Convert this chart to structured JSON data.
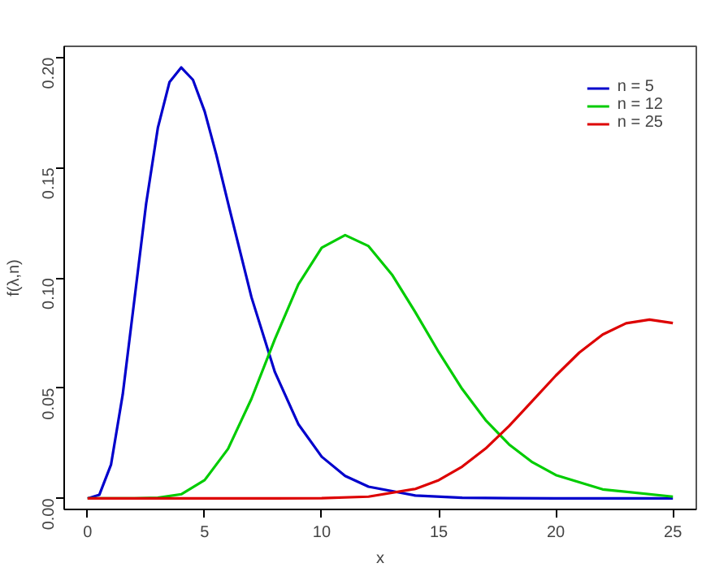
{
  "chart_data": {
    "type": "line",
    "xlabel": "x",
    "ylabel": "f(λ,n)",
    "xlim": [
      -1,
      26
    ],
    "ylim": [
      -0.005,
      0.205
    ],
    "xticks": [
      0,
      5,
      10,
      15,
      20,
      25
    ],
    "yticks": [
      {
        "value": 0,
        "label": "0.00"
      },
      {
        "value": 0.05,
        "label": "0.05"
      },
      {
        "value": 0.1,
        "label": "0.10"
      },
      {
        "value": 0.15,
        "label": "0.15"
      },
      {
        "value": 0.2,
        "label": "0.20"
      }
    ],
    "grid": false,
    "legend": "top right",
    "line_style": "solid",
    "series": [
      {
        "name": "n = 5",
        "color": "#0000cc",
        "x": [
          0,
          0.5,
          1,
          1.5,
          2,
          2.5,
          3,
          3.5,
          4,
          4.5,
          5,
          5.5,
          6,
          7,
          8,
          9,
          10,
          11,
          12,
          14,
          16,
          18,
          20,
          25
        ],
        "values": [
          0,
          0.0016,
          0.0153,
          0.0471,
          0.0902,
          0.1336,
          0.168,
          0.1888,
          0.1954,
          0.1898,
          0.1755,
          0.1558,
          0.1339,
          0.0912,
          0.0573,
          0.0337,
          0.0189,
          0.0102,
          0.0053,
          0.0013,
          0.0003,
          0.0001,
          0,
          0
        ]
      },
      {
        "name": "n = 12",
        "color": "#00cc00",
        "x": [
          0,
          2,
          3,
          4,
          5,
          6,
          7,
          8,
          9,
          10,
          11,
          12,
          13,
          14,
          15,
          16,
          17,
          18,
          19,
          20,
          22,
          25
        ],
        "values": [
          0,
          0,
          0.0003,
          0.0019,
          0.0083,
          0.0225,
          0.0452,
          0.0722,
          0.097,
          0.1137,
          0.1194,
          0.1144,
          0.1015,
          0.0844,
          0.0663,
          0.0496,
          0.0355,
          0.0245,
          0.0164,
          0.0106,
          0.0041,
          0.0008
        ]
      },
      {
        "name": "n = 25",
        "color": "#dd0000",
        "x": [
          0,
          8,
          10,
          12,
          14,
          15,
          16,
          17,
          18,
          19,
          20,
          21,
          22,
          23,
          24,
          25
        ],
        "values": [
          0,
          0,
          0.0001,
          0.0008,
          0.0043,
          0.0083,
          0.0144,
          0.0226,
          0.0328,
          0.0442,
          0.0557,
          0.0661,
          0.0743,
          0.0794,
          0.0811,
          0.0795
        ]
      }
    ]
  }
}
